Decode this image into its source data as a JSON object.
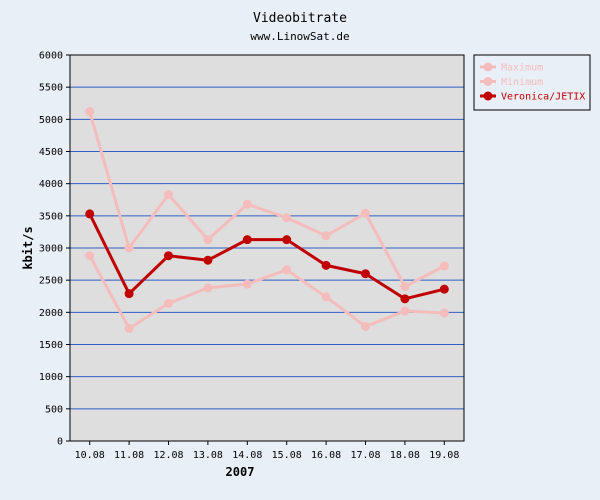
{
  "colors": {
    "page_bg": "#e9eff7",
    "plot_bg": "#dedede",
    "gridline": "#2f5fc4",
    "light_series": "#f5bcbc",
    "dark_series": "#c00000"
  },
  "chart_data": {
    "type": "line",
    "title": "Videobitrate",
    "subtitle": "www.LinowSat.de",
    "xlabel": "2007",
    "ylabel": "kbit/s",
    "categories": [
      "10.08",
      "11.08",
      "12.08",
      "13.08",
      "14.08",
      "15.08",
      "16.08",
      "17.08",
      "18.08",
      "19.08"
    ],
    "ylim": [
      0,
      6000
    ],
    "yticks": [
      0,
      500,
      1000,
      1500,
      2000,
      2500,
      3000,
      3500,
      4000,
      4500,
      5000,
      5500,
      6000
    ],
    "grid": true,
    "legend_position": "top-right, outside plot",
    "series": [
      {
        "name": "Maximum",
        "color": "#f5bcbc",
        "values": [
          5120,
          3000,
          3830,
          3130,
          3680,
          3470,
          3190,
          3540,
          2400,
          2720
        ]
      },
      {
        "name": "Minimum",
        "color": "#f5bcbc",
        "values": [
          2880,
          1750,
          2140,
          2380,
          2440,
          2660,
          2240,
          1780,
          2020,
          1990
        ]
      },
      {
        "name": "Veronica/JETIX",
        "color": "#c00000",
        "values": [
          3530,
          2290,
          2880,
          2810,
          3130,
          3130,
          2730,
          2600,
          2210,
          2360
        ]
      }
    ]
  }
}
